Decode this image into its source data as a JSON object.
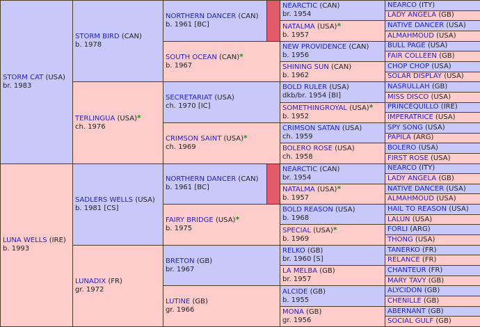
{
  "gen1": [
    {
      "name": "STORM CAT",
      "country": "(USA)",
      "info": "br. 1983",
      "sex": "m"
    },
    {
      "name": "LUNA WELLS",
      "country": "(IRE)",
      "info": "b. 1993",
      "sex": "f"
    }
  ],
  "gen2": [
    {
      "name": "STORM BIRD",
      "country": "(CAN)",
      "info": "b. 1978",
      "sex": "m"
    },
    {
      "name": "TERLINGUA",
      "country": "(USA)",
      "star": "*",
      "info": "ch. 1976",
      "sex": "f"
    },
    {
      "name": "SADLERS WELLS",
      "country": "(USA)",
      "info": "b. 1981 [CS]",
      "sex": "m"
    },
    {
      "name": "LUNADIX",
      "country": "(FR)",
      "info": "gr. 1972",
      "sex": "f"
    }
  ],
  "gen3": [
    {
      "name": "NORTHERN DANCER",
      "country": "(CAN)",
      "info": "b. 1961 [BC]",
      "sex": "m"
    },
    {
      "name": "SOUTH OCEAN",
      "country": "(CAN)",
      "star": "*",
      "info": "b. 1967",
      "sex": "f"
    },
    {
      "name": "SECRETARIAT",
      "country": "(USA)",
      "info": "ch. 1970 [IC]",
      "sex": "m"
    },
    {
      "name": "CRIMSON SAINT",
      "country": "(USA)",
      "star": "*",
      "info": "ch. 1969",
      "sex": "f"
    },
    {
      "name": "NORTHERN DANCER",
      "country": "(CAN)",
      "info": "b. 1961 [BC]",
      "sex": "m"
    },
    {
      "name": "FAIRY BRIDGE",
      "country": "(USA)",
      "star": "*",
      "info": "b. 1975",
      "sex": "f"
    },
    {
      "name": "BRETON",
      "country": "(GB)",
      "info": "br. 1967",
      "sex": "m"
    },
    {
      "name": "LUTINE",
      "country": "(GB)",
      "info": "gr. 1966",
      "sex": "f"
    }
  ],
  "gen4": [
    {
      "name": "NEARCTIC",
      "country": "(CAN)",
      "info": "br. 1954",
      "sex": "m"
    },
    {
      "name": "NATALMA",
      "country": "(USA)",
      "star": "*",
      "info": "b. 1957",
      "sex": "f"
    },
    {
      "name": "NEW PROVIDENCE",
      "country": "(CAN)",
      "info": "b. 1956",
      "sex": "m"
    },
    {
      "name": "SHINING SUN",
      "country": "(CAN)",
      "info": "b. 1962",
      "sex": "f"
    },
    {
      "name": "BOLD RULER",
      "country": "(USA)",
      "info": "dkb/br. 1954 [BI]",
      "sex": "m"
    },
    {
      "name": "SOMETHINGROYAL",
      "country": "(USA)",
      "star": "*",
      "info": "b. 1952",
      "sex": "f"
    },
    {
      "name": "CRIMSON SATAN",
      "country": "(USA)",
      "info": "ch. 1959",
      "sex": "m"
    },
    {
      "name": "BOLERO ROSE",
      "country": "(USA)",
      "info": "ch. 1958",
      "sex": "f"
    },
    {
      "name": "NEARCTIC",
      "country": "(CAN)",
      "info": "br. 1954",
      "sex": "m"
    },
    {
      "name": "NATALMA",
      "country": "(USA)",
      "star": "*",
      "info": "b. 1957",
      "sex": "f"
    },
    {
      "name": "BOLD REASON",
      "country": "(USA)",
      "info": "b. 1968",
      "sex": "m"
    },
    {
      "name": "SPECIAL",
      "country": "(USA)",
      "star": "*",
      "info": "b. 1969",
      "sex": "f"
    },
    {
      "name": "RELKO",
      "country": "(GB)",
      "info": "br. 1960 [S]",
      "sex": "m"
    },
    {
      "name": "LA MELBA",
      "country": "(GB)",
      "info": "br. 1957",
      "sex": "f"
    },
    {
      "name": "ALCIDE",
      "country": "(GB)",
      "info": "b. 1955",
      "sex": "m"
    },
    {
      "name": "MONA",
      "country": "(GB)",
      "info": "gr. 1956",
      "sex": "f"
    }
  ],
  "gen5": [
    {
      "name": "NEARCO",
      "country": "(ITY)",
      "sex": "m"
    },
    {
      "name": "LADY ANGELA",
      "country": "(GB)",
      "sex": "f"
    },
    {
      "name": "NATIVE DANCER",
      "country": "(USA)",
      "sex": "m"
    },
    {
      "name": "ALMAHMOUD",
      "country": "(USA)",
      "sex": "f"
    },
    {
      "name": "BULL PAGE",
      "country": "(USA)",
      "sex": "m"
    },
    {
      "name": "FAIR COLLEEN",
      "country": "(GB)",
      "sex": "f"
    },
    {
      "name": "CHOP CHOP",
      "country": "(USA)",
      "sex": "m"
    },
    {
      "name": "SOLAR DISPLAY",
      "country": "(USA)",
      "sex": "f"
    },
    {
      "name": "NASRULLAH",
      "country": "(GB)",
      "sex": "m"
    },
    {
      "name": "MISS DISCO",
      "country": "(USA)",
      "sex": "f"
    },
    {
      "name": "PRINCEQUILLO",
      "country": "(IRE)",
      "sex": "m"
    },
    {
      "name": "IMPERATRICE",
      "country": "(USA)",
      "sex": "f"
    },
    {
      "name": "SPY SONG",
      "country": "(USA)",
      "sex": "m"
    },
    {
      "name": "PAPILA",
      "country": "(ARG)",
      "sex": "f"
    },
    {
      "name": "BOLERO",
      "country": "(USA)",
      "sex": "m"
    },
    {
      "name": "FIRST ROSE",
      "country": "(USA)",
      "sex": "f"
    },
    {
      "name": "NEARCO",
      "country": "(ITY)",
      "sex": "m"
    },
    {
      "name": "LADY ANGELA",
      "country": "(GB)",
      "sex": "f"
    },
    {
      "name": "NATIVE DANCER",
      "country": "(USA)",
      "sex": "m"
    },
    {
      "name": "ALMAHMOUD",
      "country": "(USA)",
      "sex": "f"
    },
    {
      "name": "HAIL TO REASON",
      "country": "(USA)",
      "sex": "m"
    },
    {
      "name": "LALUN",
      "country": "(USA)",
      "sex": "f"
    },
    {
      "name": "FORLI",
      "country": "(ARG)",
      "sex": "m"
    },
    {
      "name": "THONG",
      "country": "(USA)",
      "sex": "f"
    },
    {
      "name": "TANERKO",
      "country": "(FR)",
      "sex": "m"
    },
    {
      "name": "RELANCE",
      "country": "(FR)",
      "sex": "f"
    },
    {
      "name": "CHANTEUR",
      "country": "(FR)",
      "sex": "m"
    },
    {
      "name": "MARY TAVY",
      "country": "(GB)",
      "sex": "f"
    },
    {
      "name": "ALYCIDON",
      "country": "(GB)",
      "sex": "m"
    },
    {
      "name": "CHENILLE",
      "country": "(GB)",
      "sex": "f"
    },
    {
      "name": "ABERNANT",
      "country": "(GB)",
      "sex": "m"
    },
    {
      "name": "SOCIAL GULF",
      "country": "(GB)",
      "sex": "f"
    }
  ],
  "colors": {
    "male": "#c8c8fa",
    "female": "#ffcccc",
    "inbreed_marker": "#e35a6a",
    "link": "#2222cc",
    "star": "#119911",
    "border": "#4a3b22"
  }
}
